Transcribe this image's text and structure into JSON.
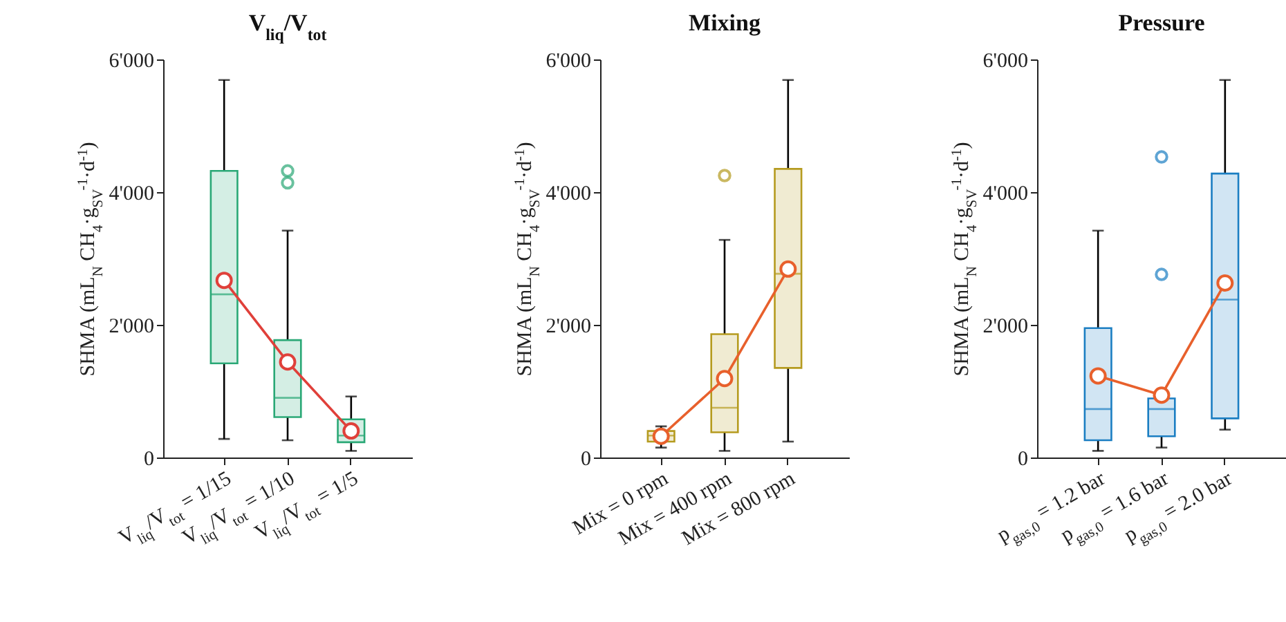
{
  "chart_data": [
    {
      "type": "box",
      "title": "V$_{liq}$/V$_{tot}$",
      "ylabel": "SHMA (mL$_{N}$ CH$_{4}$·g$_{SV}$$^{-1}$·d$^{-1}$)",
      "categories": [
        "V$_{liq}$/V$_{tot}$ = 1/15",
        "V$_{liq}$/V$_{tot}$ = 1/10",
        "V$_{liq}$/V$_{tot}$ = 1/5"
      ],
      "color": "#2aa876",
      "marker": "circle",
      "ylim": [
        0,
        6000
      ],
      "yticks": [
        {
          "value": 0,
          "label": "0"
        },
        {
          "value": 2000,
          "label": "2'000"
        },
        {
          "value": 4000,
          "label": "4'000"
        },
        {
          "value": 6000,
          "label": "6'000"
        }
      ],
      "boxes": [
        {
          "low": 280,
          "q1": 1420,
          "median": 2460,
          "q3": 4320,
          "high": 5690
        },
        {
          "low": 260,
          "q1": 610,
          "median": 900,
          "q3": 1770,
          "high": 3420,
          "outliers": [
            4140,
            4320
          ]
        },
        {
          "low": 100,
          "q1": 230,
          "median": 330,
          "q3": 575,
          "high": 920
        }
      ],
      "series": [
        {
          "type": "line",
          "color": "#e0403a",
          "values": [
            2670,
            1440,
            400
          ]
        }
      ]
    },
    {
      "type": "box",
      "title": "Mixing",
      "ylabel": "SHMA (mL$_{N}$ CH$_{4}$·g$_{SV}$$^{-1}$·d$^{-1}$)",
      "categories": [
        "Mix = 0 rpm",
        "Mix = 400 rpm",
        "Mix = 800 rpm"
      ],
      "color": "#b59b1f",
      "marker": "circle",
      "ylim": [
        0,
        6000
      ],
      "yticks": [
        {
          "value": 0,
          "label": "0"
        },
        {
          "value": 2000,
          "label": "2'000"
        },
        {
          "value": 4000,
          "label": "4'000"
        },
        {
          "value": 6000,
          "label": "6'000"
        }
      ],
      "boxes": [
        {
          "low": 150,
          "q1": 240,
          "median": 330,
          "q3": 400,
          "high": 470
        },
        {
          "low": 100,
          "q1": 380,
          "median": 750,
          "q3": 1860,
          "high": 3280,
          "outliers": [
            4250
          ]
        },
        {
          "low": 240,
          "q1": 1350,
          "median": 2770,
          "q3": 4350,
          "high": 5690
        }
      ],
      "series": [
        {
          "type": "line",
          "color": "#e8602c",
          "values": [
            320,
            1190,
            2840
          ]
        }
      ]
    },
    {
      "type": "box",
      "title": "Pressure",
      "ylabel": "SHMA (mL$_{N}$ CH$_{4}$·g$_{SV}$$^{-1}$·d$^{-1}$)",
      "categories": [
        "p$_{gas,0}$ = 1.2 bar",
        "p$_{gas,0}$ = 1.6 bar",
        "p$_{gas,0}$ = 2.0 bar"
      ],
      "color": "#1b7ec2",
      "marker": "circle",
      "ylim": [
        0,
        6000
      ],
      "yticks": [
        {
          "value": 0,
          "label": "0"
        },
        {
          "value": 2000,
          "label": "2'000"
        },
        {
          "value": 4000,
          "label": "4'000"
        },
        {
          "value": 6000,
          "label": "6'000"
        }
      ],
      "boxes": [
        {
          "low": 100,
          "q1": 260,
          "median": 730,
          "q3": 1950,
          "high": 3420
        },
        {
          "low": 150,
          "q1": 320,
          "median": 730,
          "q3": 890,
          "high": 890,
          "outliers": [
            2760,
            4530
          ]
        },
        {
          "low": 420,
          "q1": 590,
          "median": 2380,
          "q3": 4280,
          "high": 5690
        }
      ],
      "series": [
        {
          "type": "line",
          "color": "#e8602c",
          "values": [
            1230,
            940,
            2630
          ]
        }
      ]
    }
  ]
}
